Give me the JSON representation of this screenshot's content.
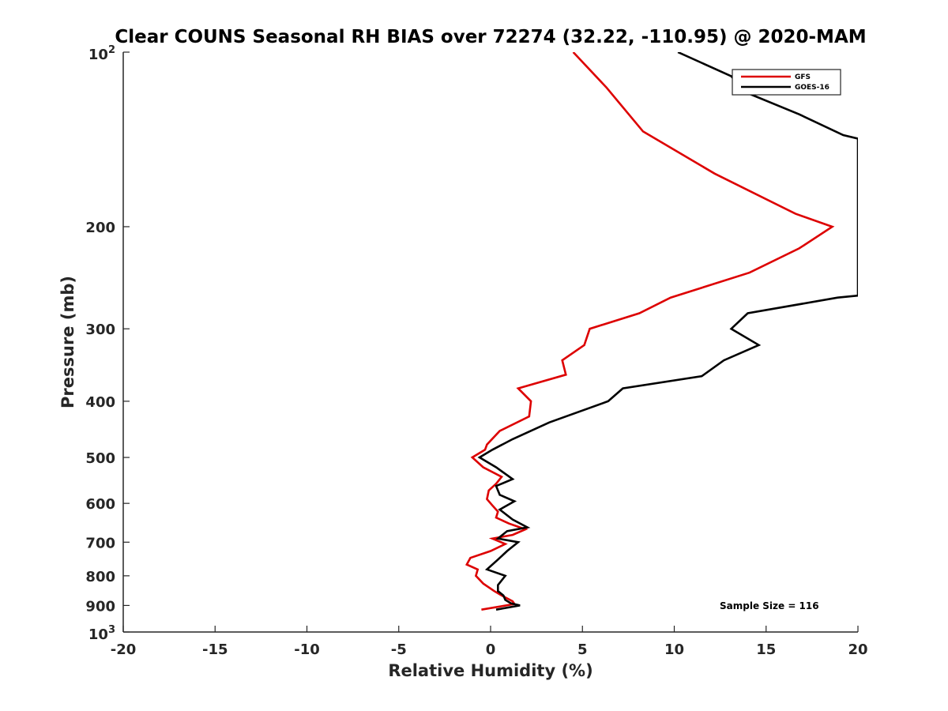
{
  "chart_data": {
    "type": "line",
    "title": "Clear COUNS Seasonal RH BIAS over 72274 (32.22, -110.95) @ 2020-MAM",
    "xlabel": "Relative Humidity (%)",
    "ylabel": "Pressure (mb)",
    "xlim": [
      -20,
      20
    ],
    "ylim": [
      100,
      1000
    ],
    "yscale": "log",
    "yreversed": true,
    "x_ticks": [
      -20,
      -15,
      -10,
      -5,
      0,
      5,
      10,
      15,
      20
    ],
    "x_tick_labels": [
      "-20",
      "-15",
      "-10",
      "-5",
      "0",
      "5",
      "10",
      "15",
      "20"
    ],
    "y_ticks": [
      200,
      300,
      400,
      500,
      600,
      700,
      800,
      900
    ],
    "y_tick_labels": [
      "200",
      "300",
      "400",
      "500",
      "600",
      "700",
      "800",
      "900"
    ],
    "y_exp_ticks": [
      {
        "value": 100,
        "base": "10",
        "exp": "2"
      },
      {
        "value": 1000,
        "base": "10",
        "exp": "3"
      }
    ],
    "grid": false,
    "legend_position": "top-right",
    "series": [
      {
        "name": "GFS",
        "color": "#dd0000",
        "points": [
          [
            4.5,
            100
          ],
          [
            6.3,
            115
          ],
          [
            8.3,
            137
          ],
          [
            12.2,
            162
          ],
          [
            16.6,
            190
          ],
          [
            18.6,
            200
          ],
          [
            16.8,
            218
          ],
          [
            14.1,
            240
          ],
          [
            9.8,
            265
          ],
          [
            8.1,
            282
          ],
          [
            5.4,
            300
          ],
          [
            5.1,
            320
          ],
          [
            3.9,
            340
          ],
          [
            4.1,
            360
          ],
          [
            1.5,
            380
          ],
          [
            2.2,
            400
          ],
          [
            2.1,
            425
          ],
          [
            0.5,
            450
          ],
          [
            -0.2,
            475
          ],
          [
            -0.3,
            485
          ],
          [
            -1.0,
            500
          ],
          [
            -0.4,
            520
          ],
          [
            0.6,
            540
          ],
          [
            0.3,
            555
          ],
          [
            -0.1,
            570
          ],
          [
            -0.2,
            590
          ],
          [
            0.1,
            605
          ],
          [
            0.4,
            620
          ],
          [
            0.3,
            635
          ],
          [
            1.0,
            650
          ],
          [
            1.9,
            665
          ],
          [
            1.2,
            680
          ],
          [
            0.1,
            690
          ],
          [
            0.8,
            705
          ],
          [
            0.0,
            725
          ],
          [
            -1.1,
            745
          ],
          [
            -1.3,
            765
          ],
          [
            -0.7,
            780
          ],
          [
            -0.8,
            800
          ],
          [
            -0.4,
            825
          ],
          [
            0.2,
            850
          ],
          [
            0.6,
            865
          ],
          [
            1.2,
            885
          ],
          [
            1.3,
            895
          ],
          [
            -0.5,
            915
          ]
        ]
      },
      {
        "name": "GOES-16",
        "color": "#000000",
        "points": [
          [
            10.2,
            100
          ],
          [
            13.1,
            110
          ],
          [
            13.8,
            117
          ],
          [
            16.8,
            128
          ],
          [
            19.2,
            139
          ],
          [
            20.0,
            141
          ],
          [
            20.0,
            263
          ],
          [
            18.9,
            265
          ],
          [
            14.0,
            282
          ],
          [
            13.1,
            300
          ],
          [
            14.6,
            320
          ],
          [
            12.7,
            340
          ],
          [
            11.5,
            362
          ],
          [
            7.2,
            380
          ],
          [
            6.4,
            400
          ],
          [
            3.2,
            435
          ],
          [
            1.2,
            465
          ],
          [
            0.1,
            485
          ],
          [
            -0.6,
            500
          ],
          [
            0.3,
            520
          ],
          [
            1.2,
            545
          ],
          [
            0.3,
            560
          ],
          [
            0.5,
            580
          ],
          [
            1.3,
            595
          ],
          [
            0.5,
            615
          ],
          [
            1.2,
            640
          ],
          [
            2.0,
            660
          ],
          [
            0.9,
            670
          ],
          [
            0.4,
            690
          ],
          [
            1.5,
            700
          ],
          [
            0.9,
            725
          ],
          [
            0.4,
            750
          ],
          [
            -0.2,
            780
          ],
          [
            0.8,
            800
          ],
          [
            0.4,
            830
          ],
          [
            0.4,
            850
          ],
          [
            0.7,
            865
          ],
          [
            0.8,
            880
          ],
          [
            1.1,
            892
          ],
          [
            1.6,
            900
          ],
          [
            0.3,
            915
          ]
        ]
      }
    ],
    "annotation": "Sample Size = 116"
  }
}
